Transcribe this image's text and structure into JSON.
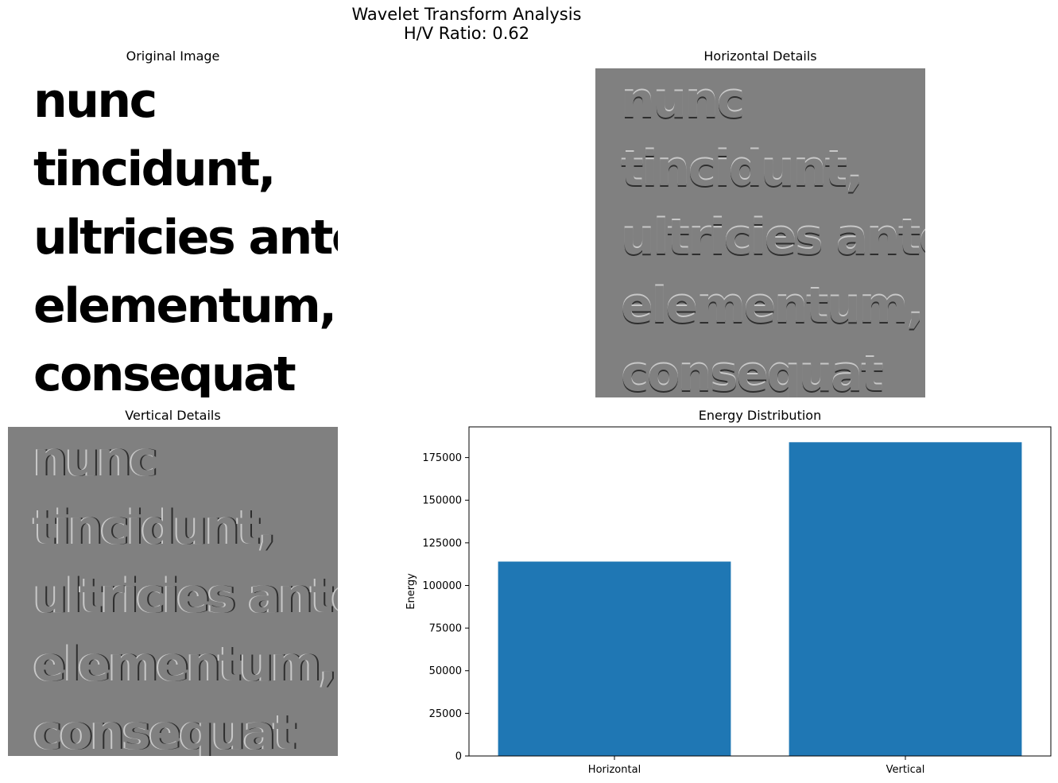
{
  "figure": {
    "title_line1": "Wavelet Transform Analysis",
    "title_line2": "H/V Ratio: 0.62"
  },
  "panels": {
    "original": {
      "title": "Original Image",
      "lines": [
        "nunc",
        "tincidunt,",
        "ultricies ante",
        "elementum,",
        "consequat"
      ]
    },
    "horizontal": {
      "title": "Horizontal Details",
      "lines": [
        "nunc",
        "tincidunt,",
        "ultricies ante",
        "elementum,",
        "consequat"
      ]
    },
    "vertical": {
      "title": "Vertical Details",
      "lines": [
        "nunc",
        "tincidunt,",
        "ultricies ante",
        "elementum,",
        "consequat"
      ]
    }
  },
  "chart_data": {
    "type": "bar",
    "title": "Energy Distribution",
    "xlabel": "",
    "ylabel": "Energy",
    "categories": [
      "Horizontal",
      "Vertical"
    ],
    "values": [
      114000,
      184000
    ],
    "ylim": [
      0,
      193000
    ],
    "yticks": [
      0,
      25000,
      50000,
      75000,
      100000,
      125000,
      150000,
      175000
    ],
    "bar_color": "#1f77b4",
    "grid": false
  }
}
